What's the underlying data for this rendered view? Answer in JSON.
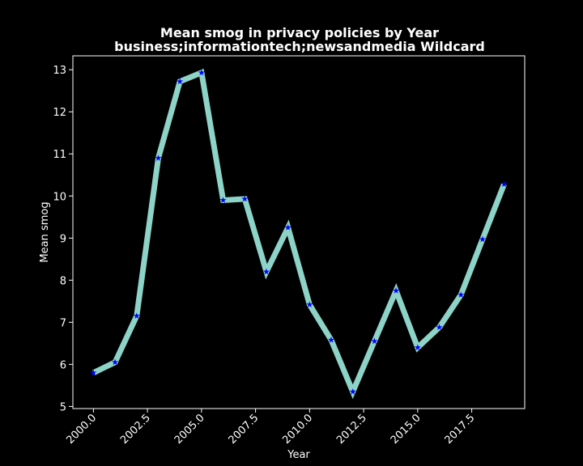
{
  "chart_data": {
    "type": "line",
    "title": "Mean smog in privacy policies by Year",
    "subtitle": "business;informationtech;newsandmedia Wildcard",
    "xlabel": "Year",
    "ylabel": "Mean smog",
    "x": [
      2000,
      2001,
      2002,
      2003,
      2004,
      2005,
      2006,
      2007,
      2008,
      2009,
      2010,
      2011,
      2012,
      2013,
      2014,
      2015,
      2016,
      2017,
      2018,
      2019
    ],
    "series": [
      {
        "values": [
          5.8,
          6.05,
          7.15,
          10.9,
          12.72,
          12.93,
          9.9,
          9.93,
          8.2,
          9.25,
          7.42,
          6.58,
          5.35,
          6.55,
          7.75,
          6.4,
          6.88,
          7.65,
          8.97,
          10.28
        ]
      }
    ],
    "xticks": [
      "2000.0",
      "2002.5",
      "2005.0",
      "2007.5",
      "2010.0",
      "2012.5",
      "2015.0",
      "2017.5"
    ],
    "yticks": [
      "5",
      "6",
      "7",
      "8",
      "9",
      "10",
      "11",
      "12",
      "13"
    ],
    "xlim": [
      1999.05,
      2019.95
    ],
    "ylim": [
      4.95,
      13.33
    ],
    "grid": false,
    "legend": "none",
    "colors": {
      "background": "#000000",
      "line": "#8dd3c7",
      "marker": "#0000ff",
      "text": "#ffffff",
      "frame": "#ffffff"
    }
  }
}
